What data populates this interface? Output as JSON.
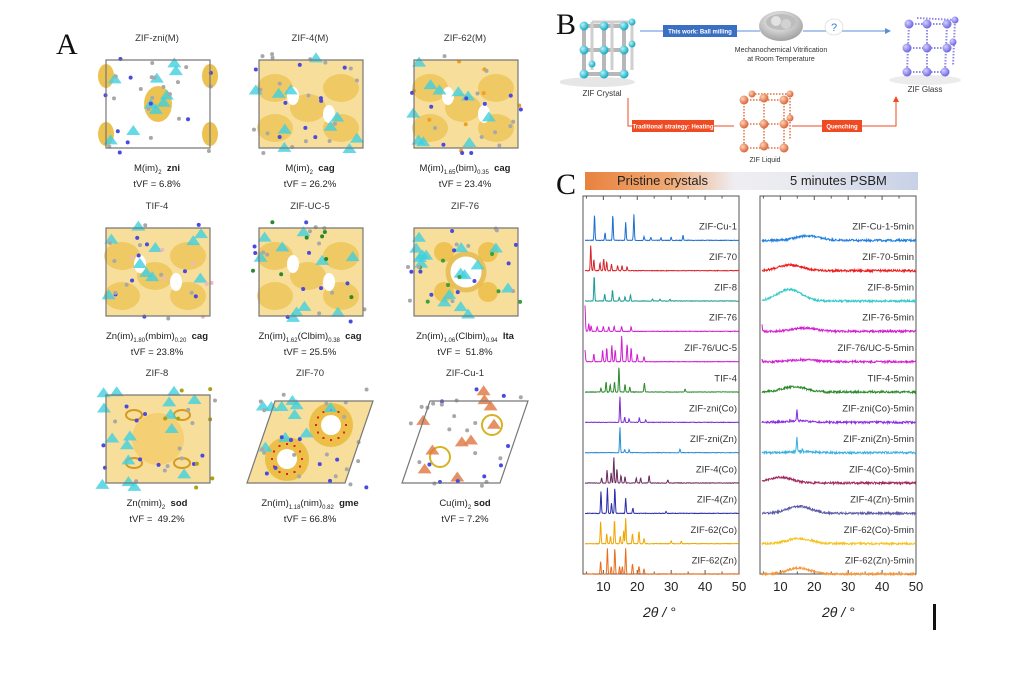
{
  "panels": {
    "a": {
      "letter": "A"
    },
    "b": {
      "letter": "B"
    },
    "c": {
      "letter": "C"
    }
  },
  "structures": [
    {
      "title": "ZIF-zni(M)",
      "formula_html": "M(im)<sub>2</sub>&nbsp;&nbsp;<b>zni</b>",
      "tvf": "tVF = 6.8%",
      "style": "zni"
    },
    {
      "title": "ZIF-4(M)",
      "formula_html": "M(im)<sub>2</sub>&nbsp;&nbsp;<b>cag</b>",
      "tvf": "tVF = 26.2%",
      "style": "cag"
    },
    {
      "title": "ZIF-62(M)",
      "formula_html": "M(im)<sub>1.65</sub>(bim)<sub>0.35</sub>&nbsp;&nbsp;<b>cag</b>",
      "tvf": "tVF = 23.4%",
      "style": "cag62"
    },
    {
      "title": "TIF-4",
      "formula_html": "Zn(im)<sub>1.80</sub>(mbim)<sub>0.20</sub>&nbsp;&nbsp;<b>cag</b>",
      "tvf": "tVF = 23.8%",
      "style": "tif4"
    },
    {
      "title": "ZIF-UC-5",
      "formula_html": "Zn(im)<sub>1.62</sub>(Clbim)<sub>0.38</sub>&nbsp;&nbsp;<b>cag</b>",
      "tvf": "tVF = 25.5%",
      "style": "uc5"
    },
    {
      "title": "ZIF-76",
      "formula_html": "Zn(im)<sub>1.06</sub>(Clbim)<sub>0.94</sub>&nbsp;&nbsp;<b>lta</b>",
      "tvf": "tVF =&nbsp; 51.8%",
      "style": "lta"
    },
    {
      "title": "ZIF-8",
      "formula_html": "Zn(mim)<sub>2</sub>&nbsp;&nbsp;<b>sod</b>",
      "tvf": "tVF =&nbsp; 49.2%",
      "style": "sod"
    },
    {
      "title": "ZIF-70",
      "formula_html": "Zn(im)<sub>1.18</sub>(nim)<sub>0.82</sub>&nbsp;&nbsp;<b>gme</b>",
      "tvf": "tVF = 66.8%",
      "style": "gme"
    },
    {
      "title": "ZIF-Cu-1",
      "formula_html": "Cu(im)<sub>2</sub> <b>sod</b>",
      "tvf": "tVF = 7.2%",
      "style": "cu"
    }
  ],
  "scheme": {
    "crystal_label": "ZIF Crystal",
    "glass_label": "ZIF Glass",
    "liquid_label": "ZIF Liquid",
    "ball_milling_tag": "This work: Ball milling",
    "vitrification_line1": "Mechanochemical Vitrification",
    "vitrification_line2": "at Room Temperature",
    "question_mark": "?",
    "heating_tag": "Traditional strategy: Heating",
    "quenching_tag": "Quenching",
    "colors": {
      "blue_tag": "#3b6fc4",
      "red_tag": "#f04a23",
      "crystal": "#35c6d8",
      "glass": "#7b74e6",
      "liquid": "#e8845a"
    }
  },
  "header": {
    "left": "Pristine crystals",
    "right": "5 minutes PSBM"
  },
  "chart_data": [
    {
      "type": "line",
      "title": "Pristine crystals",
      "xlabel": "2θ / °",
      "ylabel": "",
      "xlim": [
        4,
        50
      ],
      "xticks": [
        10,
        20,
        30,
        40,
        50
      ],
      "grid": false,
      "legend": "inline labels at right of each trace",
      "series": [
        {
          "name": "ZIF-Cu-1",
          "color": "#1f6fd1",
          "peaks": [
            [
              7.4,
              1.0
            ],
            [
              10.5,
              0.3
            ],
            [
              12.8,
              1.0
            ],
            [
              16.6,
              0.7
            ],
            [
              19.0,
              1.0
            ],
            [
              22,
              0.15
            ],
            [
              24,
              0.12
            ],
            [
              27,
              0.1
            ],
            [
              30,
              0.12
            ],
            [
              33.5,
              0.2
            ]
          ]
        },
        {
          "name": "ZIF-70",
          "color": "#d9232b",
          "peaks": [
            [
              6.3,
              1.0
            ],
            [
              7.2,
              0.45
            ],
            [
              9.0,
              0.3
            ],
            [
              10.1,
              0.45
            ],
            [
              11.0,
              0.35
            ],
            [
              12.4,
              0.25
            ],
            [
              14.2,
              0.2
            ],
            [
              15.5,
              0.2
            ],
            [
              17.0,
              0.15
            ]
          ]
        },
        {
          "name": "ZIF-8",
          "color": "#1d9a98",
          "peaks": [
            [
              7.3,
              1.0
            ],
            [
              10.4,
              0.28
            ],
            [
              12.7,
              0.45
            ],
            [
              14.7,
              0.15
            ],
            [
              16.4,
              0.18
            ],
            [
              18.0,
              0.25
            ],
            [
              24.5,
              0.08
            ],
            [
              26.7,
              0.08
            ],
            [
              29.6,
              0.07
            ]
          ]
        },
        {
          "name": "ZIF-76",
          "color": "#d21fd1",
          "peaks": [
            [
              4.6,
              1.0
            ],
            [
              5.7,
              0.3
            ],
            [
              6.4,
              0.22
            ],
            [
              8.2,
              0.18
            ],
            [
              10.0,
              0.2
            ],
            [
              11.6,
              0.18
            ],
            [
              13.2,
              0.2
            ],
            [
              15.4,
              0.2
            ],
            [
              18.2,
              0.18
            ]
          ]
        },
        {
          "name": "ZIF-76/UC-5",
          "color": "#d21fd1",
          "peaks": [
            [
              4.6,
              0.45
            ],
            [
              7.2,
              0.3
            ],
            [
              9.8,
              0.45
            ],
            [
              11.0,
              0.55
            ],
            [
              12.5,
              0.65
            ],
            [
              13.5,
              0.45
            ],
            [
              15.4,
              1.0
            ],
            [
              17.0,
              0.7
            ],
            [
              18.2,
              0.55
            ],
            [
              20.0,
              0.3
            ],
            [
              22.0,
              0.2
            ]
          ]
        },
        {
          "name": "TIF-4",
          "color": "#2e8b2e",
          "peaks": [
            [
              9.3,
              0.15
            ],
            [
              10.8,
              0.4
            ],
            [
              12.0,
              0.3
            ],
            [
              13.3,
              0.4
            ],
            [
              14.6,
              1.0
            ],
            [
              16.4,
              0.3
            ],
            [
              17.8,
              0.2
            ],
            [
              22.1,
              0.35
            ],
            [
              34.1,
              0.12
            ]
          ]
        },
        {
          "name": "ZIF-zni(Co)",
          "color": "#7a2fd1",
          "peaks": [
            [
              14.9,
              1.0
            ],
            [
              16.3,
              0.2
            ],
            [
              17.6,
              0.15
            ],
            [
              20.6,
              0.18
            ],
            [
              22.5,
              0.1
            ]
          ]
        },
        {
          "name": "ZIF-zni(Zn)",
          "color": "#2a8fd6",
          "peaks": [
            [
              14.9,
              1.0
            ],
            [
              16.3,
              0.12
            ],
            [
              17.6,
              0.12
            ],
            [
              32.6,
              0.15
            ]
          ]
        },
        {
          "name": "ZIF-4(Co)",
          "color": "#6b2b5e",
          "peaks": [
            [
              9.5,
              0.2
            ],
            [
              11.1,
              0.5
            ],
            [
              12.3,
              0.4
            ],
            [
              13.1,
              1.0
            ],
            [
              14.0,
              0.55
            ],
            [
              15.2,
              0.3
            ],
            [
              16.4,
              0.25
            ],
            [
              19.7,
              0.2
            ],
            [
              21.0,
              0.2
            ],
            [
              23.5,
              0.3
            ],
            [
              29.0,
              0.12
            ]
          ]
        },
        {
          "name": "ZIF-4(Zn)",
          "color": "#2a2ea8",
          "peaks": [
            [
              9.3,
              0.85
            ],
            [
              11.2,
              1.0
            ],
            [
              12.4,
              0.4
            ],
            [
              13.4,
              1.0
            ],
            [
              16.6,
              0.6
            ],
            [
              18.7,
              0.2
            ],
            [
              28.5,
              0.08
            ]
          ]
        },
        {
          "name": "ZIF-62(Co)",
          "color": "#f0a500",
          "peaks": [
            [
              9.2,
              0.9
            ],
            [
              11.0,
              0.4
            ],
            [
              12.1,
              0.3
            ],
            [
              13.3,
              0.95
            ],
            [
              15.0,
              0.3
            ],
            [
              16.0,
              0.5
            ],
            [
              16.6,
              1.0
            ],
            [
              18.6,
              0.4
            ],
            [
              20.5,
              0.5
            ],
            [
              22.0,
              0.2
            ],
            [
              30.0,
              0.1
            ],
            [
              33.0,
              0.1
            ]
          ]
        },
        {
          "name": "ZIF-62(Zn)",
          "color": "#e86d1c",
          "peaks": [
            [
              9.2,
              0.5
            ],
            [
              11.2,
              1.0
            ],
            [
              12.3,
              0.3
            ],
            [
              13.4,
              1.0
            ],
            [
              14.8,
              0.3
            ],
            [
              15.6,
              0.3
            ],
            [
              16.6,
              1.0
            ],
            [
              18.6,
              0.4
            ],
            [
              20.5,
              0.3
            ],
            [
              22.0,
              0.2
            ]
          ]
        }
      ]
    },
    {
      "type": "line",
      "title": "5 minutes PSBM",
      "xlabel": "2θ / °",
      "ylabel": "",
      "xlim": [
        4,
        50
      ],
      "xticks": [
        10,
        20,
        30,
        40,
        50
      ],
      "grid": false,
      "legend": "inline labels at right of each trace",
      "series": [
        {
          "name": "ZIF-Cu-1-5min",
          "color": "#1f7ee0",
          "hump_center": 18,
          "hump_height": 0.35,
          "sharp_peaks": []
        },
        {
          "name": "ZIF-70-5min",
          "color": "#ea1c1c",
          "hump_center": 13,
          "hump_height": 0.45,
          "sharp_peaks": []
        },
        {
          "name": "ZIF-8-5min",
          "color": "#35c9c9",
          "hump_center": 12.7,
          "hump_height": 0.9,
          "sharp_peaks": []
        },
        {
          "name": "ZIF-76-5min",
          "color": "#d21fd1",
          "hump_center": 17,
          "hump_height": 0.25,
          "sharp_peaks": [
            [
              4.5,
              0.5
            ]
          ]
        },
        {
          "name": "ZIF-76/UC-5-5min",
          "color": "#d21fd1",
          "hump_center": 17,
          "hump_height": 0.15,
          "sharp_peaks": [
            [
              4.5,
              0.2
            ]
          ]
        },
        {
          "name": "TIF-4-5min",
          "color": "#2e8b2e",
          "hump_center": 14,
          "hump_height": 0.4,
          "sharp_peaks": []
        },
        {
          "name": "ZIF-zni(Co)-5min",
          "color": "#8a2be2",
          "hump_center": 15,
          "hump_height": 0.12,
          "sharp_peaks": [
            [
              14.9,
              0.7
            ]
          ]
        },
        {
          "name": "ZIF-zni(Zn)-5min",
          "color": "#3ab0e0",
          "hump_center": 16,
          "hump_height": 0.08,
          "sharp_peaks": [
            [
              14.9,
              1.0
            ],
            [
              16.5,
              0.15
            ],
            [
              20.6,
              0.08
            ]
          ]
        },
        {
          "name": "ZIF-4(Co)-5min",
          "color": "#a0285e",
          "hump_center": 10,
          "hump_height": 0.45,
          "sharp_peaks": []
        },
        {
          "name": "ZIF-4(Zn)-5min",
          "color": "#5a5aa8",
          "hump_center": 15.5,
          "hump_height": 0.55,
          "sharp_peaks": []
        },
        {
          "name": "ZIF-62(Co)-5min",
          "color": "#f5c21e",
          "hump_center": 15.5,
          "hump_height": 0.4,
          "sharp_peaks": []
        },
        {
          "name": "ZIF-62(Zn)-5min",
          "color": "#f5963a",
          "hump_center": 15.5,
          "hump_height": 0.45,
          "sharp_peaks": []
        }
      ]
    }
  ]
}
